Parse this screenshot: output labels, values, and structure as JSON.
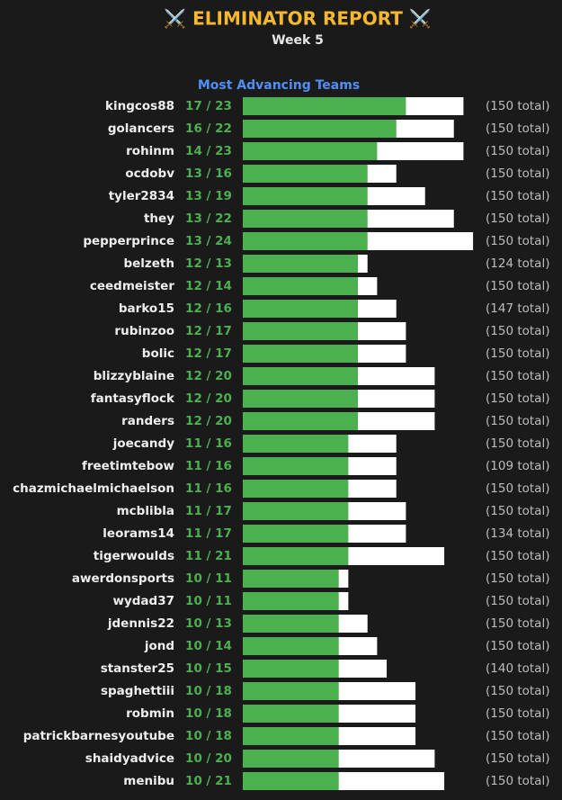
{
  "header": {
    "title": "⚔️ ELIMINATOR REPORT ⚔️",
    "subtitle": "Week 5",
    "section": "Most Advancing Teams"
  },
  "rows": [
    {
      "name": "kingcos88",
      "record": "17 / 23",
      "advancing": 17,
      "entries": 23,
      "total": "(150 total)"
    },
    {
      "name": "golancers",
      "record": "16 / 22",
      "advancing": 16,
      "entries": 22,
      "total": "(150 total)"
    },
    {
      "name": "rohinm",
      "record": "14 / 23",
      "advancing": 14,
      "entries": 23,
      "total": "(150 total)"
    },
    {
      "name": "ocdobv",
      "record": "13 / 16",
      "advancing": 13,
      "entries": 16,
      "total": "(150 total)"
    },
    {
      "name": "tyler2834",
      "record": "13 / 19",
      "advancing": 13,
      "entries": 19,
      "total": "(150 total)"
    },
    {
      "name": "they",
      "record": "13 / 22",
      "advancing": 13,
      "entries": 22,
      "total": "(150 total)"
    },
    {
      "name": "pepperprince",
      "record": "13 / 24",
      "advancing": 13,
      "entries": 24,
      "total": "(150 total)"
    },
    {
      "name": "belzeth",
      "record": "12 / 13",
      "advancing": 12,
      "entries": 13,
      "total": "(124 total)"
    },
    {
      "name": "ceedmeister",
      "record": "12 / 14",
      "advancing": 12,
      "entries": 14,
      "total": "(150 total)"
    },
    {
      "name": "barko15",
      "record": "12 / 16",
      "advancing": 12,
      "entries": 16,
      "total": "(147 total)"
    },
    {
      "name": "rubinzoo",
      "record": "12 / 17",
      "advancing": 12,
      "entries": 17,
      "total": "(150 total)"
    },
    {
      "name": "bolic",
      "record": "12 / 17",
      "advancing": 12,
      "entries": 17,
      "total": "(150 total)"
    },
    {
      "name": "blizzyblaine",
      "record": "12 / 20",
      "advancing": 12,
      "entries": 20,
      "total": "(150 total)"
    },
    {
      "name": "fantasyflock",
      "record": "12 / 20",
      "advancing": 12,
      "entries": 20,
      "total": "(150 total)"
    },
    {
      "name": "randers",
      "record": "12 / 20",
      "advancing": 12,
      "entries": 20,
      "total": "(150 total)"
    },
    {
      "name": "joecandy",
      "record": "11 / 16",
      "advancing": 11,
      "entries": 16,
      "total": "(150 total)"
    },
    {
      "name": "freetimtebow",
      "record": "11 / 16",
      "advancing": 11,
      "entries": 16,
      "total": "(109 total)"
    },
    {
      "name": "chazmichaelmichaelson",
      "record": "11 / 16",
      "advancing": 11,
      "entries": 16,
      "total": "(150 total)"
    },
    {
      "name": "mcblibla",
      "record": "11 / 17",
      "advancing": 11,
      "entries": 17,
      "total": "(150 total)"
    },
    {
      "name": "leorams14",
      "record": "11 / 17",
      "advancing": 11,
      "entries": 17,
      "total": "(134 total)"
    },
    {
      "name": "tigerwoulds",
      "record": "11 / 21",
      "advancing": 11,
      "entries": 21,
      "total": "(150 total)"
    },
    {
      "name": "awerdonsports",
      "record": "10 / 11",
      "advancing": 10,
      "entries": 11,
      "total": "(150 total)"
    },
    {
      "name": "wydad37",
      "record": "10 / 11",
      "advancing": 10,
      "entries": 11,
      "total": "(150 total)"
    },
    {
      "name": "jdennis22",
      "record": "10 / 13",
      "advancing": 10,
      "entries": 13,
      "total": "(150 total)"
    },
    {
      "name": "jond",
      "record": "10 / 14",
      "advancing": 10,
      "entries": 14,
      "total": "(150 total)"
    },
    {
      "name": "stanster25",
      "record": "10 / 15",
      "advancing": 10,
      "entries": 15,
      "total": "(140 total)"
    },
    {
      "name": "spaghettiii",
      "record": "10 / 18",
      "advancing": 10,
      "entries": 18,
      "total": "(150 total)"
    },
    {
      "name": "robmin",
      "record": "10 / 18",
      "advancing": 10,
      "entries": 18,
      "total": "(150 total)"
    },
    {
      "name": "patrickbarnesyoutube",
      "record": "10 / 18",
      "advancing": 10,
      "entries": 18,
      "total": "(150 total)"
    },
    {
      "name": "shaidyadvice",
      "record": "10 / 20",
      "advancing": 10,
      "entries": 20,
      "total": "(150 total)"
    },
    {
      "name": "menibu",
      "record": "10 / 21",
      "advancing": 10,
      "entries": 21,
      "total": "(150 total)"
    }
  ]
}
